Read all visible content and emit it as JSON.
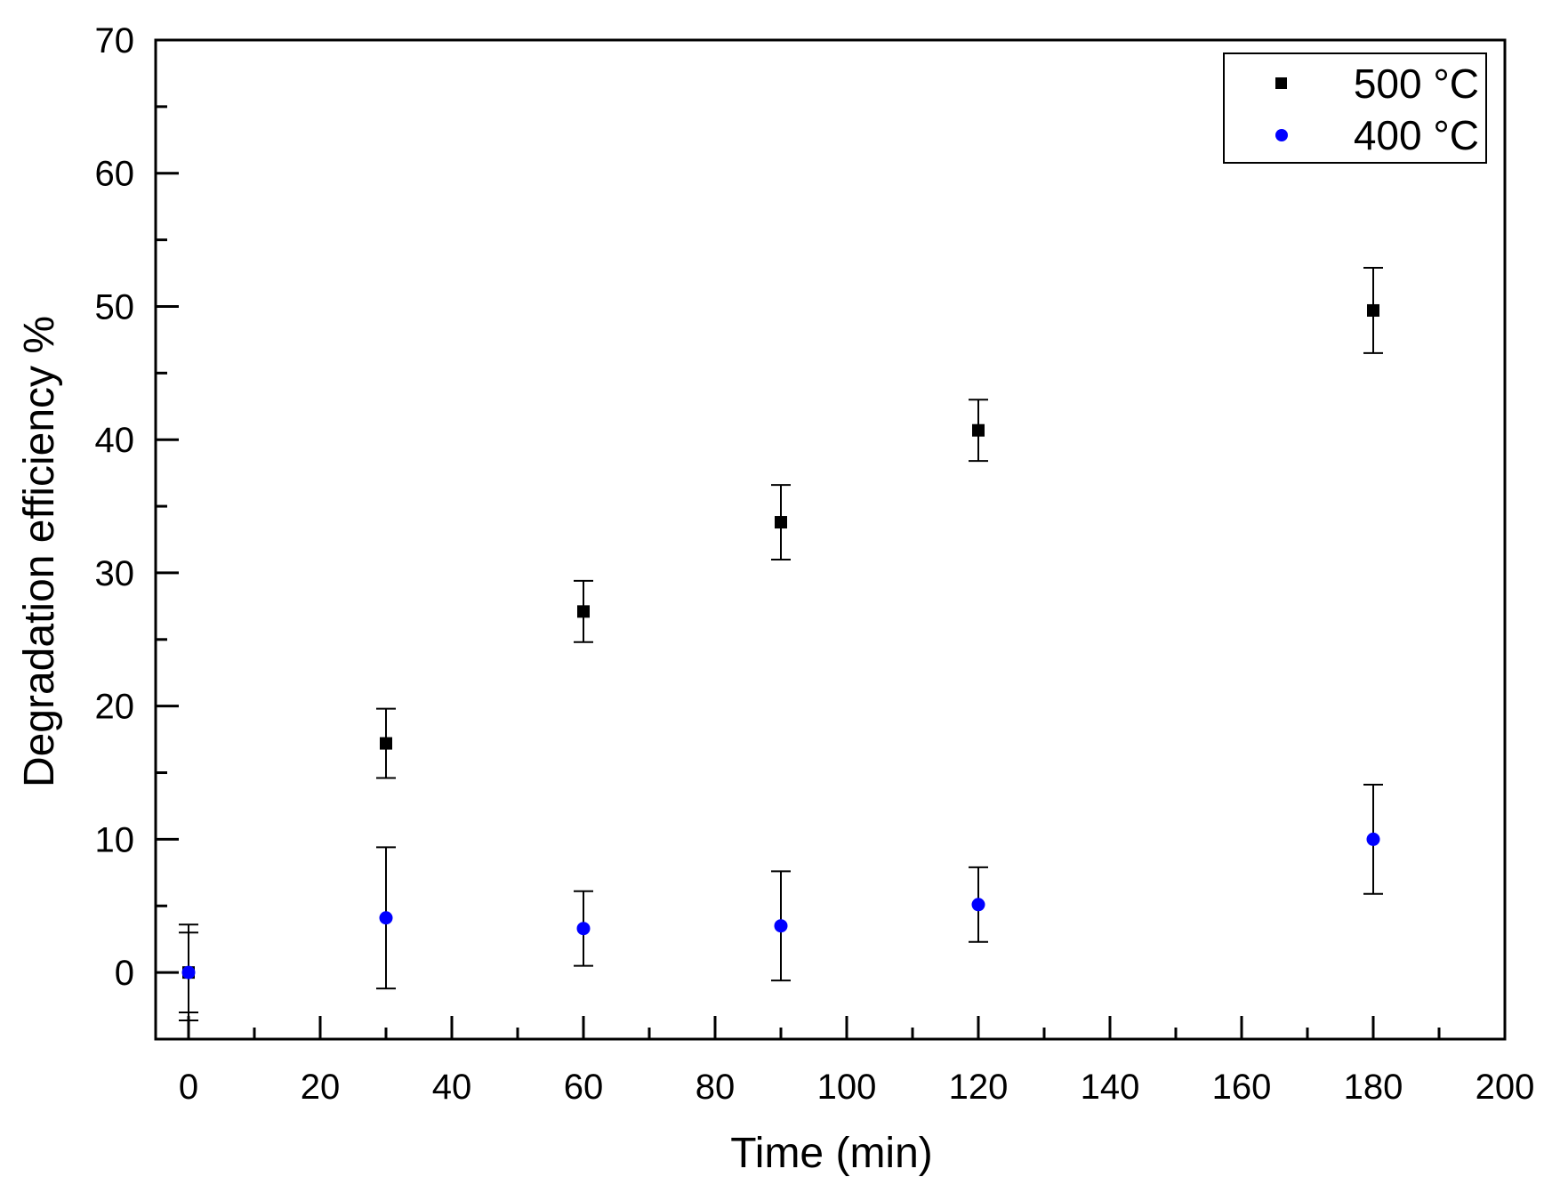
{
  "chart_data": {
    "type": "scatter",
    "title": "",
    "xlabel": "Time (min)",
    "ylabel": "Degradation efficiency %",
    "xlim": [
      -5,
      200
    ],
    "ylim": [
      -5,
      70
    ],
    "xticks": [
      0,
      20,
      40,
      60,
      80,
      100,
      120,
      140,
      160,
      180,
      200
    ],
    "yticks": [
      0,
      10,
      20,
      30,
      40,
      50,
      60,
      70
    ],
    "grid": false,
    "legend_position": "top-right",
    "series": [
      {
        "name": "500 °C",
        "marker": "square",
        "color": "#000000",
        "x": [
          0,
          30,
          60,
          90,
          120,
          180
        ],
        "y": [
          0,
          17.2,
          27.1,
          33.8,
          40.7,
          49.7
        ],
        "err": [
          3.0,
          2.6,
          2.3,
          2.8,
          2.3,
          3.2
        ]
      },
      {
        "name": "400 °C",
        "marker": "circle",
        "color": "#0000ff",
        "x": [
          0,
          30,
          60,
          90,
          120,
          180
        ],
        "y": [
          0,
          4.1,
          3.3,
          3.5,
          5.1,
          10.0
        ],
        "err": [
          3.6,
          5.3,
          2.8,
          4.1,
          2.8,
          4.1
        ]
      }
    ]
  }
}
